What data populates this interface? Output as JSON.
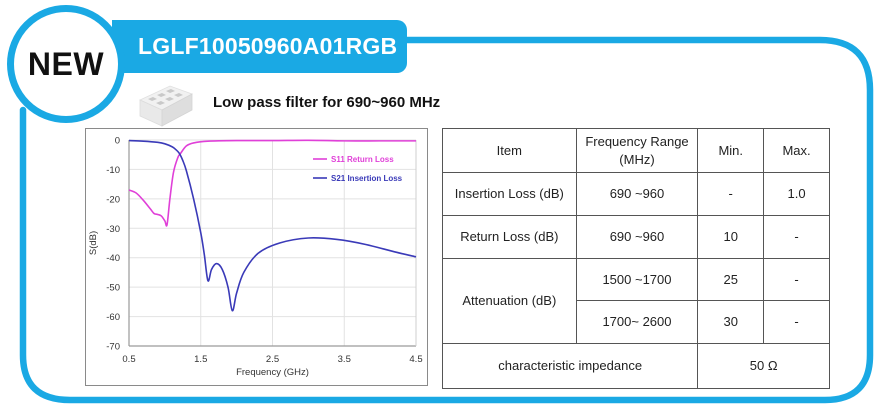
{
  "badge": {
    "label": "NEW"
  },
  "product": {
    "part_number": "LGLF10050960A01RGB",
    "description": "Low pass filter for  690~960 MHz",
    "icon": "smd-chip-icon"
  },
  "colors": {
    "accent": "#1aa9e4",
    "s11": "#e040d8",
    "s21": "#3a3ab8",
    "grid": "#e2e2e2",
    "axis": "#9a9a9a"
  },
  "chart_data": {
    "type": "line",
    "title": "",
    "xlabel": "Frequency (GHz)",
    "ylabel": "S(dB)",
    "xlim": [
      0.5,
      4.5
    ],
    "ylim": [
      -70,
      0
    ],
    "xticks": [
      "0.5",
      "1.5",
      "2.5",
      "3.5",
      "4.5"
    ],
    "yticks": [
      "0",
      "-10",
      "-20",
      "-30",
      "-40",
      "-50",
      "-60",
      "-70"
    ],
    "grid": true,
    "legend_position": "upper right",
    "series": [
      {
        "name": "S11 Return Loss",
        "color": "#e040d8",
        "x": [
          0.5,
          0.6,
          0.7,
          0.8,
          0.85,
          0.9,
          0.95,
          1.0,
          1.03,
          1.07,
          1.12,
          1.18,
          1.22,
          1.3,
          1.4,
          1.6,
          2.0,
          2.5,
          3.0,
          3.5,
          4.0,
          4.5
        ],
        "y": [
          -17,
          -18,
          -20.5,
          -23.5,
          -25,
          -25.3,
          -25.8,
          -27.5,
          -28.8,
          -20,
          -11,
          -6,
          -4.5,
          -2,
          -1,
          -0.4,
          -0.2,
          -0.2,
          -0.1,
          -0.3,
          -0.3,
          -0.3
        ]
      },
      {
        "name": "S21 Insertion Loss",
        "color": "#3a3ab8",
        "x": [
          0.5,
          0.7,
          0.9,
          1.0,
          1.1,
          1.15,
          1.2,
          1.25,
          1.3,
          1.4,
          1.5,
          1.55,
          1.6,
          1.65,
          1.72,
          1.8,
          1.88,
          1.94,
          2.0,
          2.1,
          2.3,
          2.6,
          3.0,
          3.4,
          3.8,
          4.2,
          4.5
        ],
        "y": [
          -0.2,
          -0.4,
          -0.8,
          -1.3,
          -2.3,
          -3.2,
          -4.5,
          -7,
          -10.5,
          -20,
          -31.5,
          -39,
          -47.8,
          -44,
          -42,
          -44,
          -50,
          -58,
          -52,
          -45,
          -38.5,
          -35,
          -33.3,
          -33.8,
          -35.5,
          -38,
          -39.7
        ]
      }
    ]
  },
  "spec_table": {
    "headers": [
      "Item",
      "Frequency Range\n(MHz)",
      "Min.",
      "Max."
    ],
    "header_item": "Item",
    "header_freq_line1": "Frequency Range",
    "header_freq_line2": "(MHz)",
    "header_min": "Min.",
    "header_max": "Max.",
    "rows": [
      {
        "item": "Insertion Loss (dB)",
        "range": "690 ~960",
        "min": "-",
        "max": "1.0"
      },
      {
        "item": "Return Loss (dB)",
        "range": "690 ~960",
        "min": "10",
        "max": "-"
      },
      {
        "item": "Attenuation (dB)",
        "range": "1500 ~1700",
        "min": "25",
        "max": "-"
      },
      {
        "item": "Attenuation (dB)",
        "range": "1700~ 2600",
        "min": "30",
        "max": "-"
      }
    ],
    "impedance_label": "characteristic impedance",
    "impedance_value": "50 Ω"
  }
}
